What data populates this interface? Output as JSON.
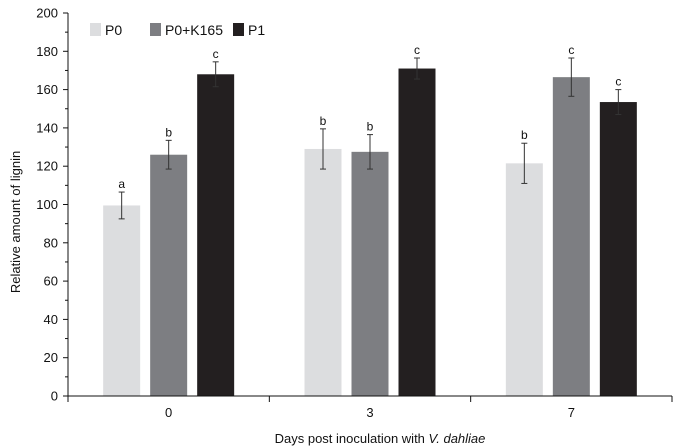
{
  "chart_data": {
    "type": "bar",
    "categories": [
      "0",
      "3",
      "7"
    ],
    "series": [
      {
        "name": "P0",
        "color": "#dcdddf",
        "values": [
          99.5,
          129,
          121.5
        ],
        "errors": [
          7,
          10.5,
          10.5
        ],
        "letters": [
          "a",
          "b",
          "b"
        ]
      },
      {
        "name": "P0+K165",
        "color": "#7d7e82",
        "values": [
          126,
          127.5,
          166.5
        ],
        "errors": [
          7.5,
          9,
          10
        ],
        "letters": [
          "b",
          "b",
          "c"
        ]
      },
      {
        "name": "P1",
        "color": "#231f20",
        "values": [
          168,
          171,
          153.5
        ],
        "errors": [
          6.5,
          5.5,
          6.5
        ],
        "letters": [
          "c",
          "c",
          "c"
        ]
      }
    ],
    "xlabel_prefix": "Days post inoculation with ",
    "xlabel_italic": "V. dahliae",
    "ylabel": "Relative amount of lignin",
    "ylim": [
      0,
      200
    ],
    "yticks": [
      "0",
      "20",
      "40",
      "60",
      "80",
      "100",
      "120",
      "140",
      "160",
      "180",
      "200"
    ],
    "grid": false,
    "legend_position": "top-left"
  }
}
